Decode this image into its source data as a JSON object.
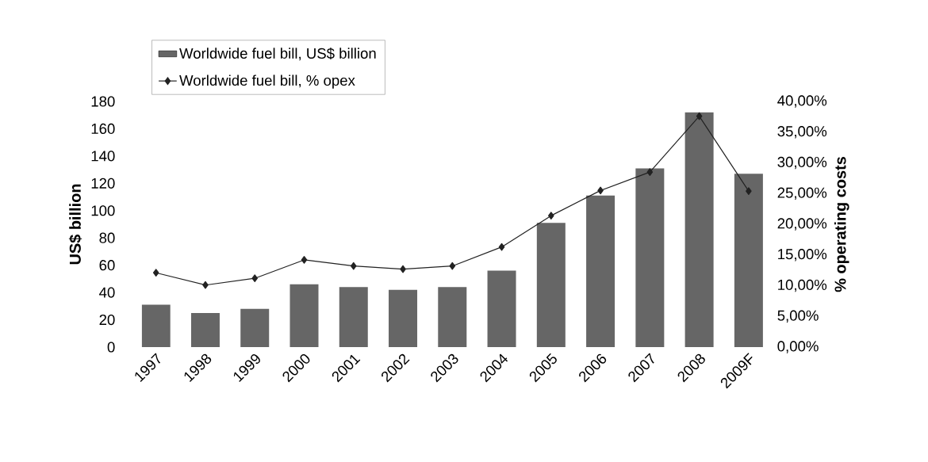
{
  "chart_data": {
    "type": "bar",
    "ylabel": "US$ billion",
    "y2label": "% operating costs",
    "categories": [
      "1997",
      "1998",
      "1999",
      "2000",
      "2001",
      "2002",
      "2003",
      "2004",
      "2005",
      "2006",
      "2007",
      "2008",
      "2009F"
    ],
    "series": [
      {
        "name": "Worldwide fuel bill, US$ billion",
        "color": "#666666",
        "values": [
          31,
          25,
          28,
          46,
          44,
          42,
          44,
          56,
          91,
          111,
          131,
          172,
          127
        ]
      },
      {
        "name": "Worldwide fuel bill, % opex",
        "type": "line",
        "axis": "y2",
        "color": "#222222",
        "marker": "diamond",
        "values": [
          12.1,
          10.1,
          11.2,
          14.2,
          13.2,
          12.7,
          13.2,
          16.3,
          21.4,
          25.5,
          28.5,
          37.6,
          25.4
        ]
      }
    ],
    "ylim": [
      0,
      180
    ],
    "yticks": [
      0,
      20,
      40,
      60,
      80,
      100,
      120,
      140,
      160,
      180
    ],
    "y2lim": [
      0,
      40
    ],
    "y2ticks": [
      {
        "value": 0,
        "label": "0,00%"
      },
      {
        "value": 5,
        "label": "5,00%"
      },
      {
        "value": 10,
        "label": "10,00%"
      },
      {
        "value": 15,
        "label": "15,00%"
      },
      {
        "value": 20,
        "label": "20,00%"
      },
      {
        "value": 25,
        "label": "25,00%"
      },
      {
        "value": 30,
        "label": "30,00%"
      },
      {
        "value": 35,
        "label": "35,00%"
      },
      {
        "value": 40,
        "label": "40,00%"
      }
    ],
    "grid": false,
    "legend": "top left"
  }
}
